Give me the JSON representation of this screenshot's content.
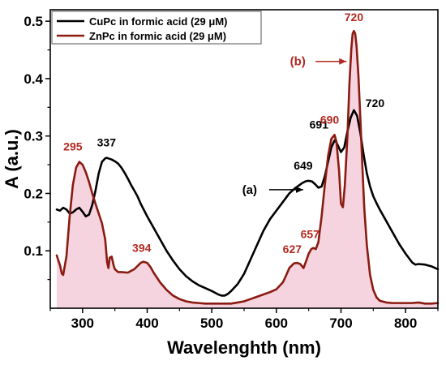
{
  "chart_data": {
    "type": "line",
    "title": "",
    "xlabel": "Wavelenghth (nm)",
    "ylabel": "A (a.u.)",
    "xlim": [
      250,
      850
    ],
    "ylim": [
      0,
      0.52
    ],
    "xticks": [
      300,
      400,
      500,
      600,
      700,
      800
    ],
    "yticks": [
      0.1,
      0.2,
      0.3,
      0.4,
      0.5
    ],
    "xtick_labels": [
      "300",
      "400",
      "500",
      "600",
      "700",
      "800"
    ],
    "ytick_labels": [
      "0.1",
      "0.2",
      "0.3",
      "0.4",
      "0.5"
    ],
    "grid": false,
    "legend_position": "top-left",
    "series": [
      {
        "name": "CuPc in formic acid (29 μM)",
        "color": "#000000",
        "fill": "",
        "x": [
          260,
          265,
          270,
          275,
          280,
          285,
          290,
          295,
          300,
          305,
          310,
          315,
          320,
          325,
          330,
          335,
          337,
          340,
          345,
          350,
          355,
          360,
          365,
          370,
          375,
          380,
          385,
          390,
          400,
          410,
          420,
          430,
          440,
          450,
          460,
          470,
          480,
          490,
          500,
          505,
          510,
          515,
          520,
          525,
          530,
          540,
          550,
          560,
          570,
          580,
          590,
          600,
          610,
          620,
          630,
          640,
          645,
          649,
          655,
          660,
          665,
          670,
          675,
          680,
          685,
          690,
          691,
          695,
          700,
          705,
          710,
          715,
          720,
          725,
          730,
          735,
          740,
          745,
          750,
          755,
          760,
          770,
          780,
          790,
          800,
          810,
          815,
          820,
          830,
          840,
          850
        ],
        "y": [
          0.172,
          0.17,
          0.175,
          0.172,
          0.165,
          0.167,
          0.172,
          0.175,
          0.168,
          0.16,
          0.163,
          0.18,
          0.205,
          0.235,
          0.255,
          0.261,
          0.262,
          0.261,
          0.259,
          0.256,
          0.252,
          0.245,
          0.236,
          0.226,
          0.215,
          0.205,
          0.195,
          0.182,
          0.16,
          0.14,
          0.12,
          0.1,
          0.083,
          0.068,
          0.056,
          0.047,
          0.04,
          0.035,
          0.03,
          0.027,
          0.024,
          0.022,
          0.022,
          0.025,
          0.03,
          0.042,
          0.06,
          0.085,
          0.11,
          0.135,
          0.155,
          0.17,
          0.185,
          0.2,
          0.21,
          0.218,
          0.221,
          0.222,
          0.221,
          0.216,
          0.21,
          0.212,
          0.23,
          0.255,
          0.28,
          0.292,
          0.293,
          0.284,
          0.272,
          0.28,
          0.308,
          0.332,
          0.345,
          0.335,
          0.305,
          0.268,
          0.235,
          0.212,
          0.195,
          0.183,
          0.172,
          0.152,
          0.132,
          0.112,
          0.095,
          0.08,
          0.076,
          0.077,
          0.076,
          0.073,
          0.068
        ]
      },
      {
        "name": "ZnPc in formic acid (29 μM)",
        "color": "#8b1a10",
        "fill": "#f2c4d4",
        "x": [
          260,
          262,
          265,
          268,
          270,
          275,
          280,
          285,
          290,
          295,
          300,
          305,
          310,
          315,
          320,
          325,
          330,
          335,
          338,
          340,
          342,
          345,
          348,
          350,
          355,
          360,
          370,
          380,
          390,
          394,
          400,
          405,
          410,
          420,
          430,
          440,
          450,
          460,
          470,
          480,
          490,
          500,
          510,
          520,
          530,
          540,
          550,
          560,
          570,
          580,
          590,
          600,
          610,
          615,
          620,
          627,
          632,
          637,
          642,
          646,
          650,
          654,
          657,
          661,
          665,
          670,
          675,
          680,
          685,
          690,
          693,
          697,
          700,
          703,
          706,
          710,
          713,
          716,
          718,
          720,
          722,
          724,
          727,
          730,
          733,
          736,
          740,
          745,
          750,
          755,
          760,
          770,
          780,
          790,
          800,
          810,
          820,
          830,
          840,
          850
        ],
        "y": [
          0.092,
          0.085,
          0.075,
          0.06,
          0.058,
          0.09,
          0.16,
          0.215,
          0.245,
          0.255,
          0.25,
          0.237,
          0.22,
          0.2,
          0.182,
          0.165,
          0.148,
          0.12,
          0.08,
          0.07,
          0.088,
          0.09,
          0.075,
          0.068,
          0.063,
          0.063,
          0.062,
          0.068,
          0.079,
          0.081,
          0.079,
          0.072,
          0.062,
          0.045,
          0.032,
          0.022,
          0.016,
          0.012,
          0.01,
          0.009,
          0.008,
          0.008,
          0.008,
          0.008,
          0.008,
          0.01,
          0.012,
          0.016,
          0.02,
          0.024,
          0.028,
          0.033,
          0.045,
          0.057,
          0.07,
          0.078,
          0.079,
          0.077,
          0.07,
          0.082,
          0.095,
          0.103,
          0.105,
          0.103,
          0.115,
          0.16,
          0.215,
          0.265,
          0.295,
          0.302,
          0.29,
          0.24,
          0.182,
          0.176,
          0.215,
          0.3,
          0.39,
          0.452,
          0.478,
          0.483,
          0.478,
          0.458,
          0.405,
          0.33,
          0.25,
          0.175,
          0.11,
          0.058,
          0.032,
          0.019,
          0.013,
          0.01,
          0.009,
          0.009,
          0.009,
          0.009,
          0.01,
          0.008,
          0.008,
          0.009
        ]
      }
    ],
    "peak_labels": [
      {
        "text": "337",
        "x": 337,
        "y": 0.262,
        "color": "#000000"
      },
      {
        "text": "649",
        "x": 649,
        "y": 0.222,
        "color": "#000000"
      },
      {
        "text": "691",
        "x": 691,
        "y": 0.293,
        "color": "#000000"
      },
      {
        "text": "720",
        "x": 720,
        "y": 0.345,
        "color": "#000000"
      },
      {
        "text": "295",
        "x": 295,
        "y": 0.255,
        "color": "#b22a22"
      },
      {
        "text": "394",
        "x": 394,
        "y": 0.081,
        "color": "#b22a22"
      },
      {
        "text": "627",
        "x": 627,
        "y": 0.079,
        "color": "#b22a22"
      },
      {
        "text": "657",
        "x": 657,
        "y": 0.105,
        "color": "#b22a22"
      },
      {
        "text": "690",
        "x": 690,
        "y": 0.302,
        "color": "#b22a22"
      },
      {
        "text": "720",
        "x": 720,
        "y": 0.483,
        "color": "#b22a22"
      }
    ],
    "annotations": [
      {
        "text": "(a)",
        "color": "#000000",
        "target_x": 649,
        "target_y": 0.222
      },
      {
        "text": "(b)",
        "color": "#b22a22",
        "target_x": 716,
        "target_y": 0.43
      }
    ]
  }
}
